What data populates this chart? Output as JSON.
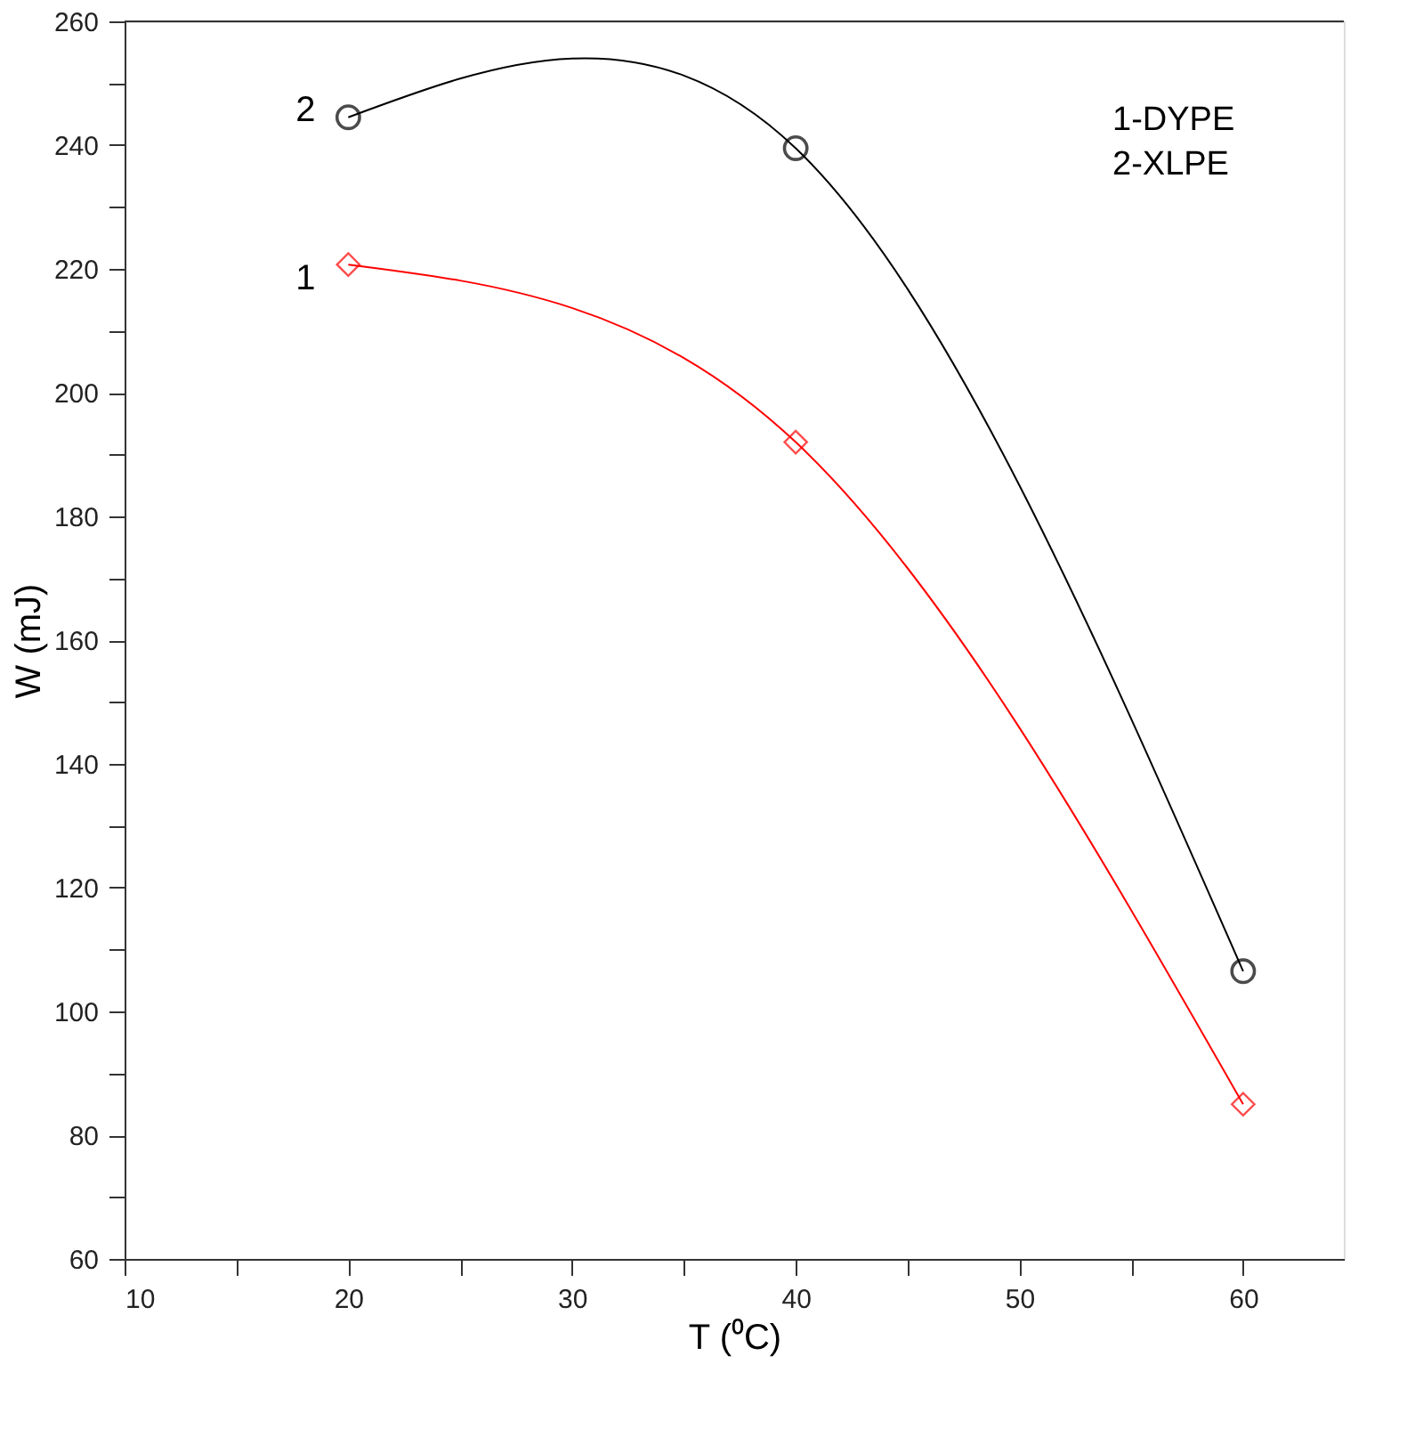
{
  "chart_data": {
    "type": "line",
    "xlabel": "T (⁰C)",
    "ylabel": "W (mJ)",
    "x": [
      20,
      40,
      60
    ],
    "series": [
      {
        "name": "1",
        "color": "#ff0000",
        "values": [
          220.7,
          192,
          85
        ],
        "marker": "diamond"
      },
      {
        "name": "2",
        "color": "#000000",
        "values": [
          244.5,
          239.5,
          106.5
        ],
        "marker": "circle"
      }
    ],
    "xlim": [
      10,
      64.5
    ],
    "xticks": [
      10,
      {
        "value": 15,
        "label": null
      },
      20,
      {
        "value": 25,
        "label": null
      },
      30,
      {
        "value": 35,
        "label": null
      },
      40,
      {
        "value": 45,
        "label": null
      },
      50,
      {
        "value": 55,
        "label": null
      },
      60
    ],
    "ylim": [
      60,
      260
    ],
    "yticks": [
      60,
      {
        "value": 70,
        "label": null
      },
      80,
      {
        "value": 90,
        "label": null
      },
      100,
      {
        "value": 110,
        "label": null
      },
      120,
      {
        "value": 130,
        "label": null
      },
      140,
      {
        "value": 150,
        "label": null
      },
      160,
      {
        "value": 170,
        "label": null
      },
      180,
      {
        "value": 190,
        "label": null
      },
      200,
      {
        "value": 210,
        "label": null
      },
      220,
      {
        "value": 230,
        "label": null
      },
      240,
      {
        "value": 250,
        "label": null
      },
      260
    ],
    "annotations": [
      "1-DYPE",
      "2-XLPE"
    ],
    "grid": false,
    "legend": false,
    "line_style": "solid"
  }
}
